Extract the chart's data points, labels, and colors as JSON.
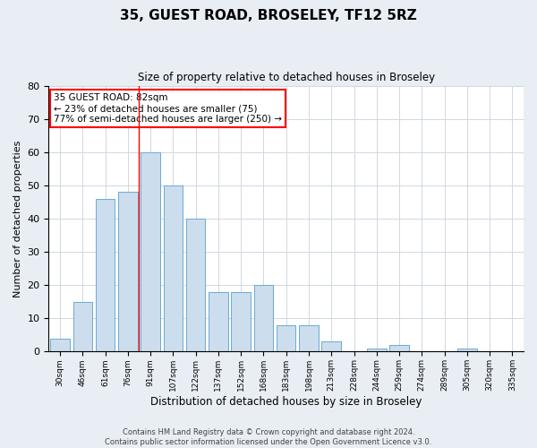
{
  "title": "35, GUEST ROAD, BROSELEY, TF12 5RZ",
  "subtitle": "Size of property relative to detached houses in Broseley",
  "xlabel": "Distribution of detached houses by size in Broseley",
  "ylabel": "Number of detached properties",
  "bar_labels": [
    "30sqm",
    "46sqm",
    "61sqm",
    "76sqm",
    "91sqm",
    "107sqm",
    "122sqm",
    "137sqm",
    "152sqm",
    "168sqm",
    "183sqm",
    "198sqm",
    "213sqm",
    "228sqm",
    "244sqm",
    "259sqm",
    "274sqm",
    "289sqm",
    "305sqm",
    "320sqm",
    "335sqm"
  ],
  "bar_values": [
    4,
    15,
    46,
    48,
    60,
    50,
    40,
    18,
    18,
    20,
    8,
    8,
    3,
    0,
    1,
    2,
    0,
    0,
    1,
    0,
    0
  ],
  "bar_color": "#ccdded",
  "bar_edge_color": "#6aaad4",
  "ylim": [
    0,
    80
  ],
  "yticks": [
    0,
    10,
    20,
    30,
    40,
    50,
    60,
    70,
    80
  ],
  "property_line_x": 3.5,
  "property_line_color": "red",
  "annotation_text": "35 GUEST ROAD: 82sqm\n← 23% of detached houses are smaller (75)\n77% of semi-detached houses are larger (250) →",
  "annotation_box_color": "white",
  "annotation_box_edge_color": "red",
  "footnote": "Contains HM Land Registry data © Crown copyright and database right 2024.\nContains public sector information licensed under the Open Government Licence v3.0.",
  "bg_color": "#e8eef4",
  "plot_bg_color": "white",
  "grid_color": "#d0d8e0"
}
